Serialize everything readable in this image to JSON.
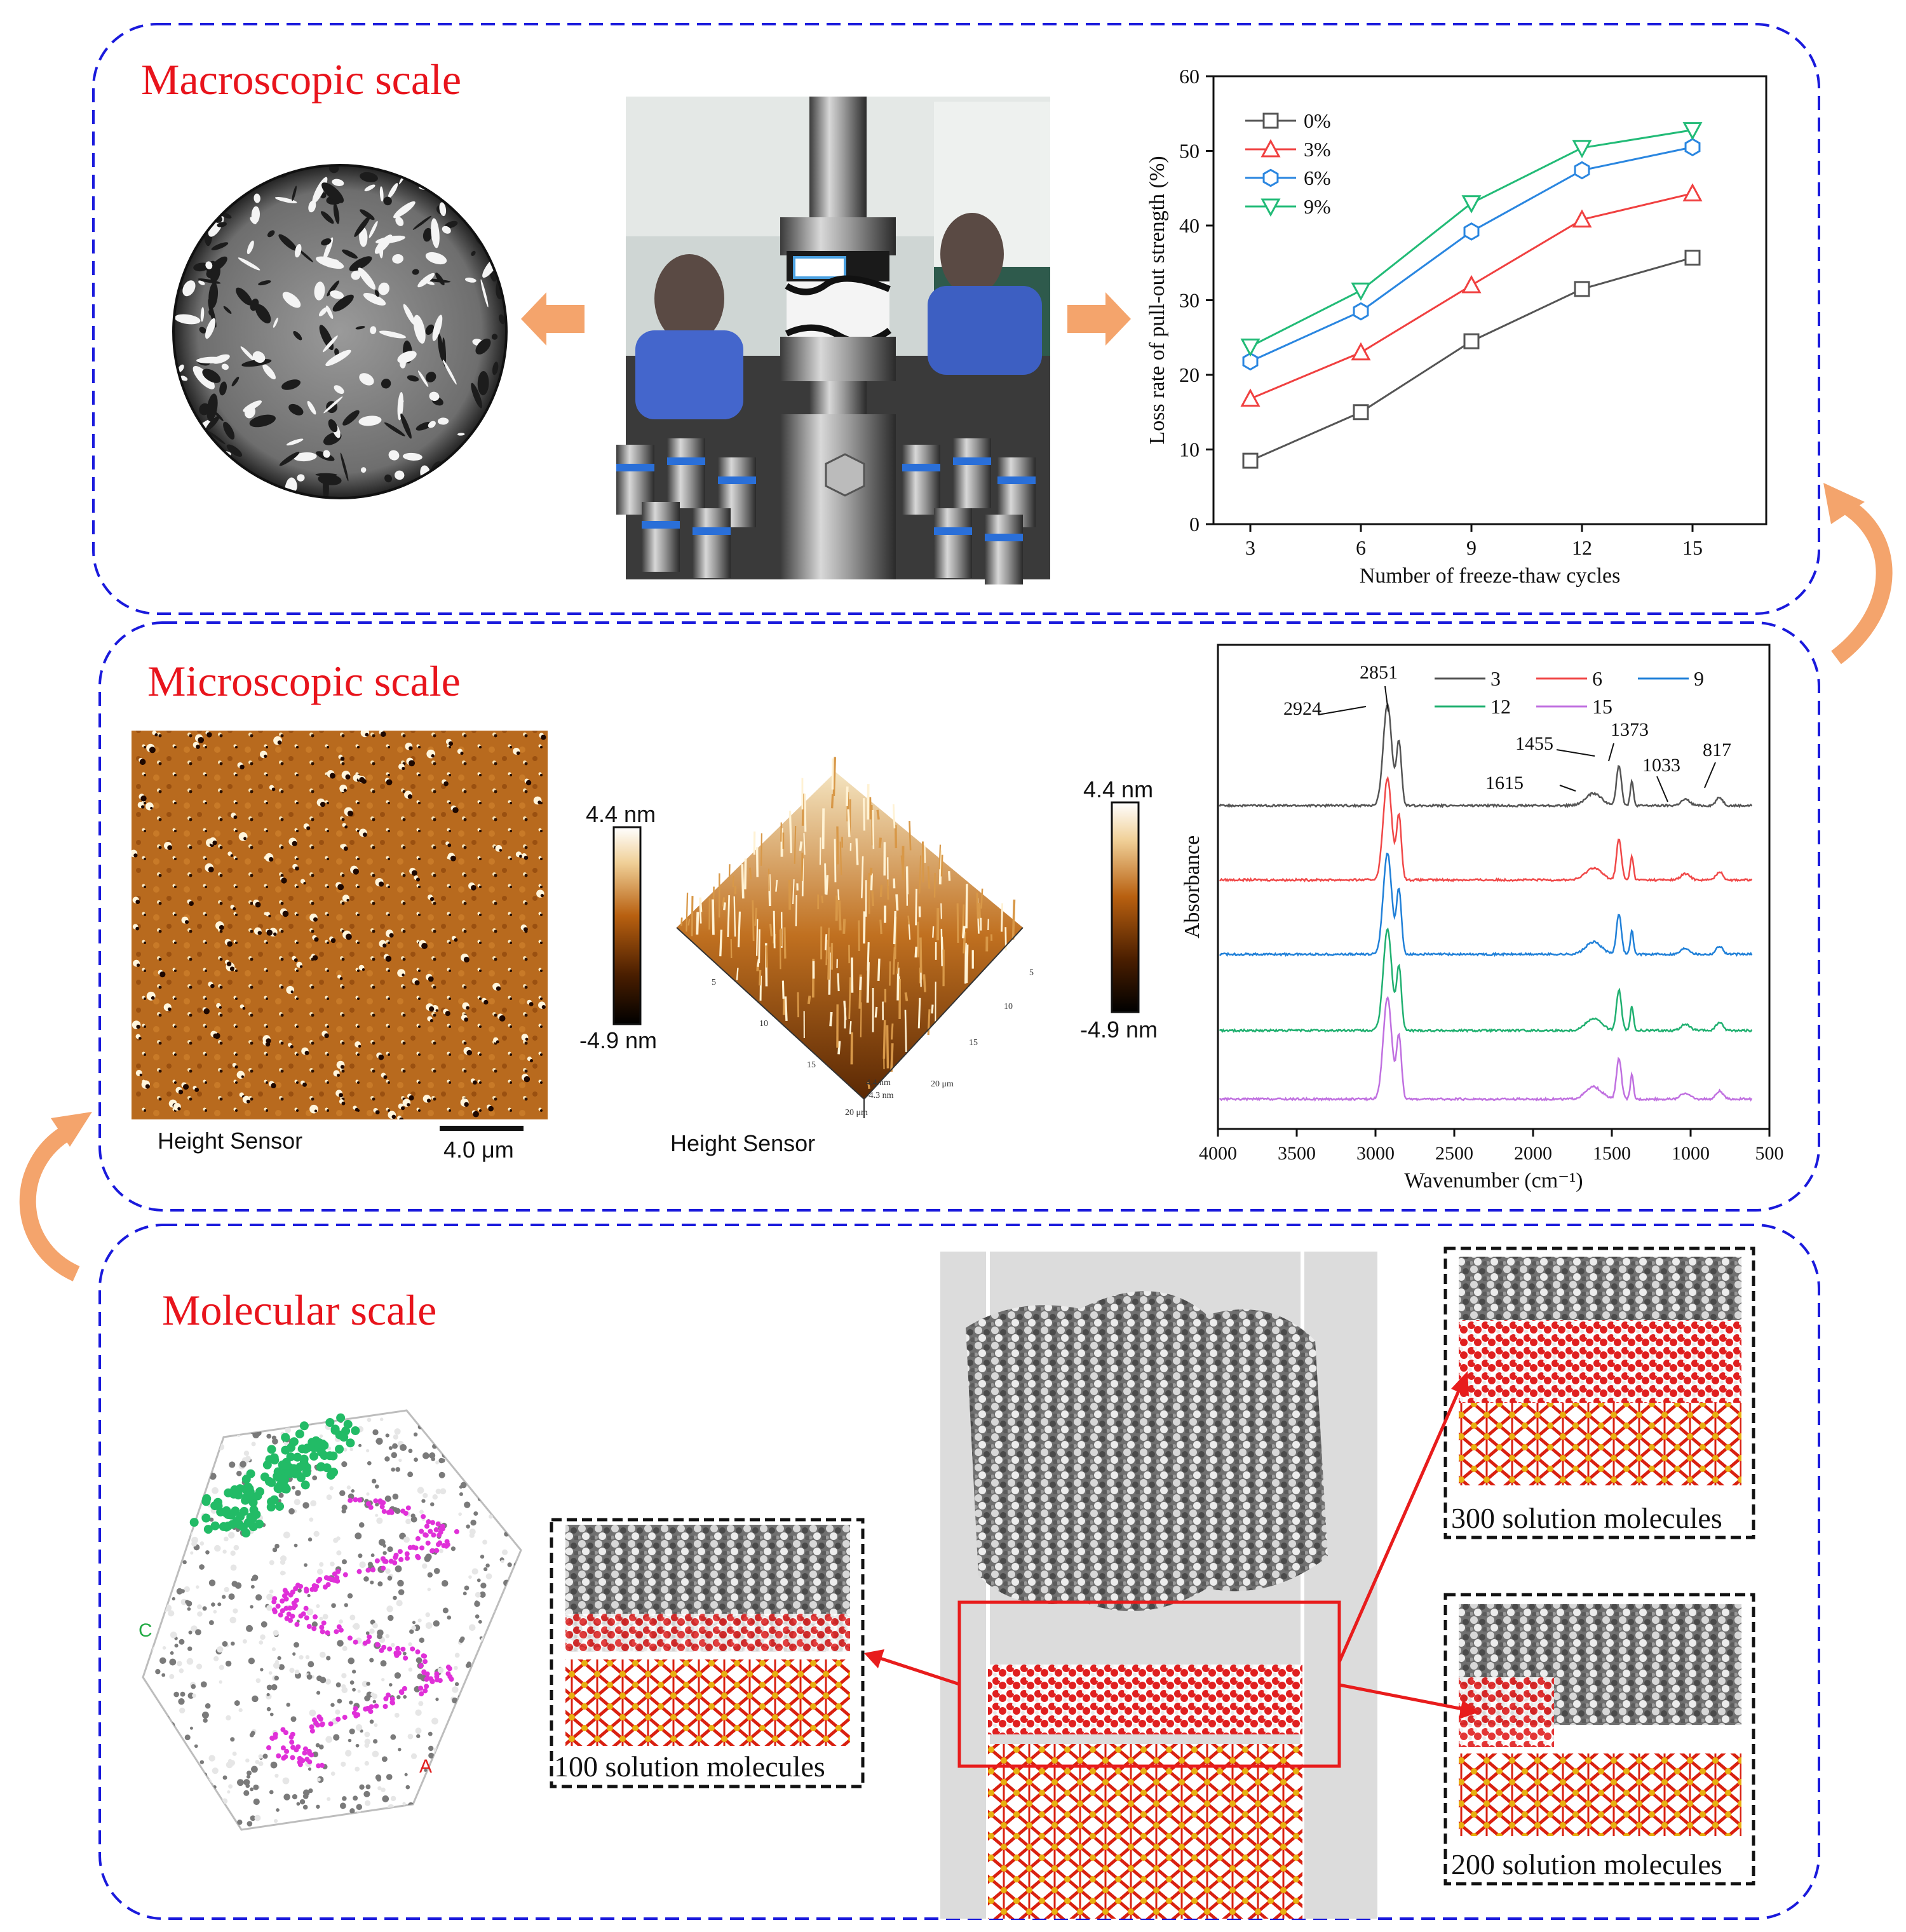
{
  "sections": {
    "macro": {
      "title": "Macroscopic scale"
    },
    "micro": {
      "title": "Microscopic scale",
      "afm2d": {
        "caption": "Height Sensor",
        "scalebar": "4.0 μm"
      },
      "colorbar_left": {
        "max": "4.4 nm",
        "min": "-4.9 nm"
      },
      "afm3d": {
        "caption": "Height Sensor",
        "axis_labels": [
          "5",
          "10",
          "15",
          "20 μm",
          "5",
          "10",
          "15",
          "20 μm",
          "4.4 nm",
          "-4.3 nm"
        ]
      },
      "colorbar_right": {
        "max": "4.4 nm",
        "min": "-4.9 nm"
      }
    },
    "molecular": {
      "title": "Molecular scale",
      "labels": [
        "100 solution molecules",
        "300 solution molecules",
        "200 solution molecules"
      ],
      "axis_letters": [
        "C",
        "A"
      ]
    }
  },
  "colors": {
    "frame": "#1a1adc",
    "title": "#e8141c",
    "arrow_orange": "#f4a46c",
    "arrow_red": "#e81c1c",
    "water_red": "#e02020",
    "silica_red": "#d92010",
    "silica_yellow": "#e8b010",
    "asphalt_gray": "#7a7a7a"
  },
  "chart_data": [
    {
      "type": "line",
      "xlabel": "Number of freeze-thaw cycles",
      "ylabel": "Loss rate of pull-out strength (%)",
      "x": [
        3,
        6,
        9,
        12,
        15
      ],
      "xlim": [
        2,
        17
      ],
      "ylim": [
        0,
        60
      ],
      "xticks": [
        "3",
        "6",
        "9",
        "12",
        "15"
      ],
      "yticks": [
        "0",
        "10",
        "20",
        "30",
        "40",
        "50",
        "60"
      ],
      "legend_position": "top-left",
      "series": [
        {
          "name": "0%",
          "marker": "square",
          "color": "#555555",
          "values": [
            8.5,
            15.0,
            24.5,
            31.5,
            35.7
          ]
        },
        {
          "name": "3%",
          "marker": "triangle-up",
          "color": "#f04040",
          "values": [
            16.8,
            23.0,
            32.0,
            40.8,
            44.3
          ]
        },
        {
          "name": "6%",
          "marker": "hexagon",
          "color": "#2a86e0",
          "values": [
            21.8,
            28.5,
            39.2,
            47.4,
            50.5
          ]
        },
        {
          "name": "9%",
          "marker": "triangle-down",
          "color": "#22bb77",
          "values": [
            23.8,
            31.3,
            43.0,
            50.4,
            52.8
          ]
        }
      ]
    },
    {
      "type": "line",
      "xlabel": "Wavenumber (cm⁻¹)",
      "ylabel": "Absorbance",
      "xlim": [
        4000,
        500
      ],
      "xticks": [
        "4000",
        "3500",
        "3000",
        "2500",
        "2000",
        "1500",
        "1000",
        "500"
      ],
      "legend_position": "top-right",
      "annotations": [
        "2924",
        "2851",
        "1615",
        "1455",
        "1373",
        "1033",
        "817"
      ],
      "series": [
        {
          "name": "3",
          "color": "#555555",
          "offset": 4
        },
        {
          "name": "6",
          "color": "#f04848",
          "offset": 3
        },
        {
          "name": "9",
          "color": "#2080d8",
          "offset": 2
        },
        {
          "name": "12",
          "color": "#20b070",
          "offset": 1
        },
        {
          "name": "15",
          "color": "#c070e0",
          "offset": 0
        }
      ],
      "peaks": [
        {
          "x": 2924,
          "height": 1.0,
          "width": 38
        },
        {
          "x": 2851,
          "height": 0.62,
          "width": 22
        },
        {
          "x": 1615,
          "height": 0.12,
          "width": 70
        },
        {
          "x": 1455,
          "height": 0.4,
          "width": 22
        },
        {
          "x": 1373,
          "height": 0.24,
          "width": 14
        },
        {
          "x": 1033,
          "height": 0.06,
          "width": 40
        },
        {
          "x": 817,
          "height": 0.08,
          "width": 30
        }
      ]
    }
  ]
}
